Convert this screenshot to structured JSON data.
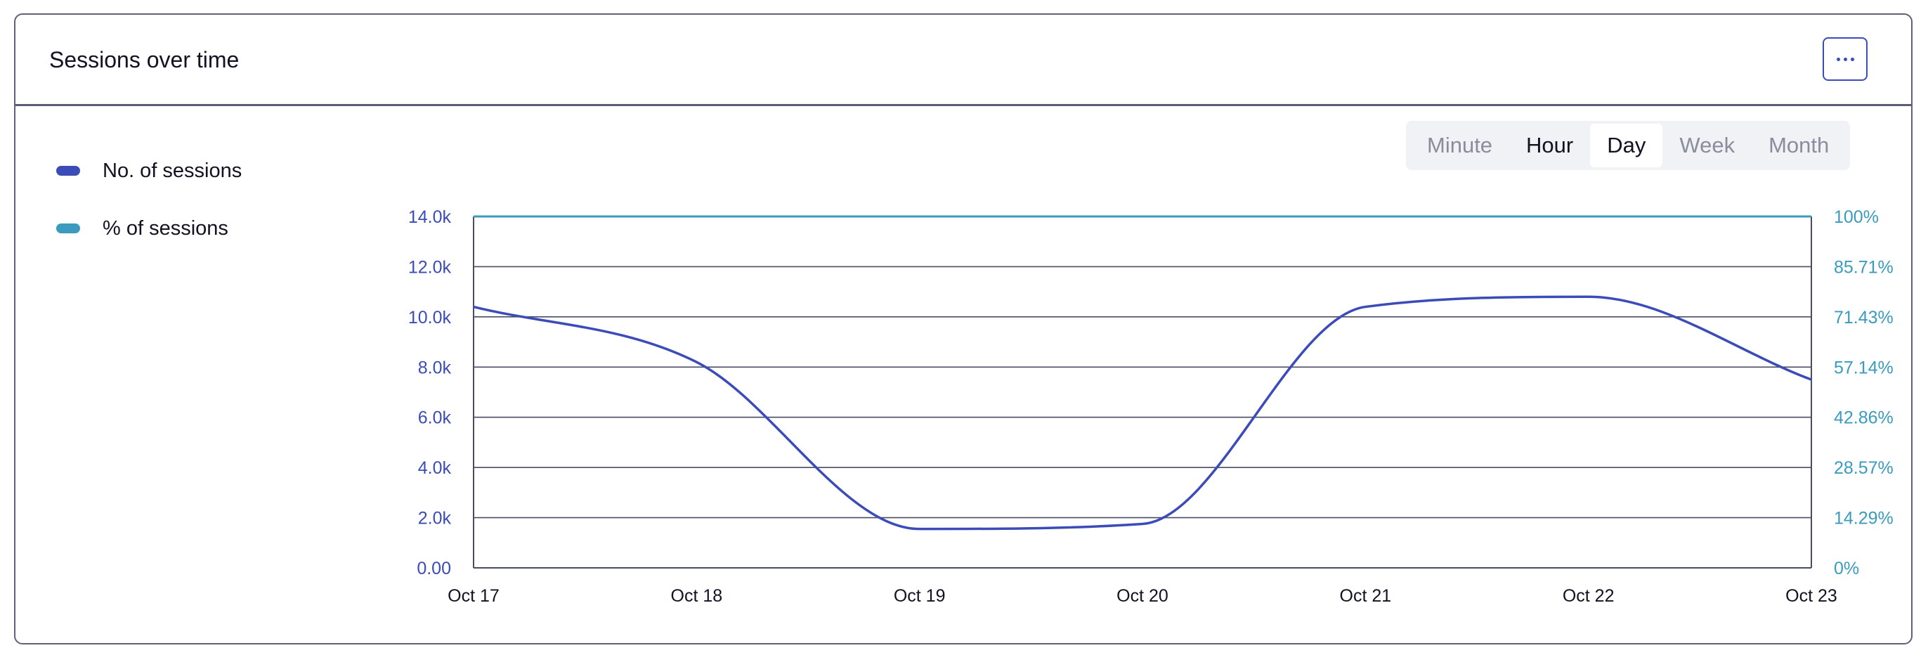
{
  "header": {
    "title": "Sessions over time"
  },
  "legend": [
    {
      "label": "No. of sessions",
      "color": "#3b4cb8"
    },
    {
      "label": "% of sessions",
      "color": "#3a9bbf"
    }
  ],
  "granularity": {
    "options": [
      "Minute",
      "Hour",
      "Day",
      "Week",
      "Month"
    ],
    "selected": "Day"
  },
  "chart_data": {
    "type": "line",
    "x": [
      "Oct 17",
      "Oct 18",
      "Oct 19",
      "Oct 20",
      "Oct 21",
      "Oct 22",
      "Oct 23"
    ],
    "series": [
      {
        "name": "No. of sessions",
        "axis": "left",
        "color": "#3b4cb8",
        "values": [
          10400,
          8200,
          1550,
          1750,
          10400,
          10800,
          7500
        ]
      },
      {
        "name": "% of sessions",
        "axis": "right",
        "color": "#3a9bbf",
        "values": [
          100,
          100,
          100,
          100,
          100,
          100,
          100
        ]
      }
    ],
    "y_left": {
      "ticks": [
        "0.00",
        "2.0k",
        "4.0k",
        "6.0k",
        "8.0k",
        "10.0k",
        "12.0k",
        "14.0k"
      ],
      "range": [
        0,
        14000
      ],
      "color": "#3b4cb8"
    },
    "y_right": {
      "ticks": [
        "0%",
        "14.29%",
        "28.57%",
        "42.86%",
        "57.14%",
        "71.43%",
        "85.71%",
        "100%"
      ],
      "range": [
        0,
        100
      ],
      "color": "#3a9bbf"
    },
    "grid": true
  }
}
